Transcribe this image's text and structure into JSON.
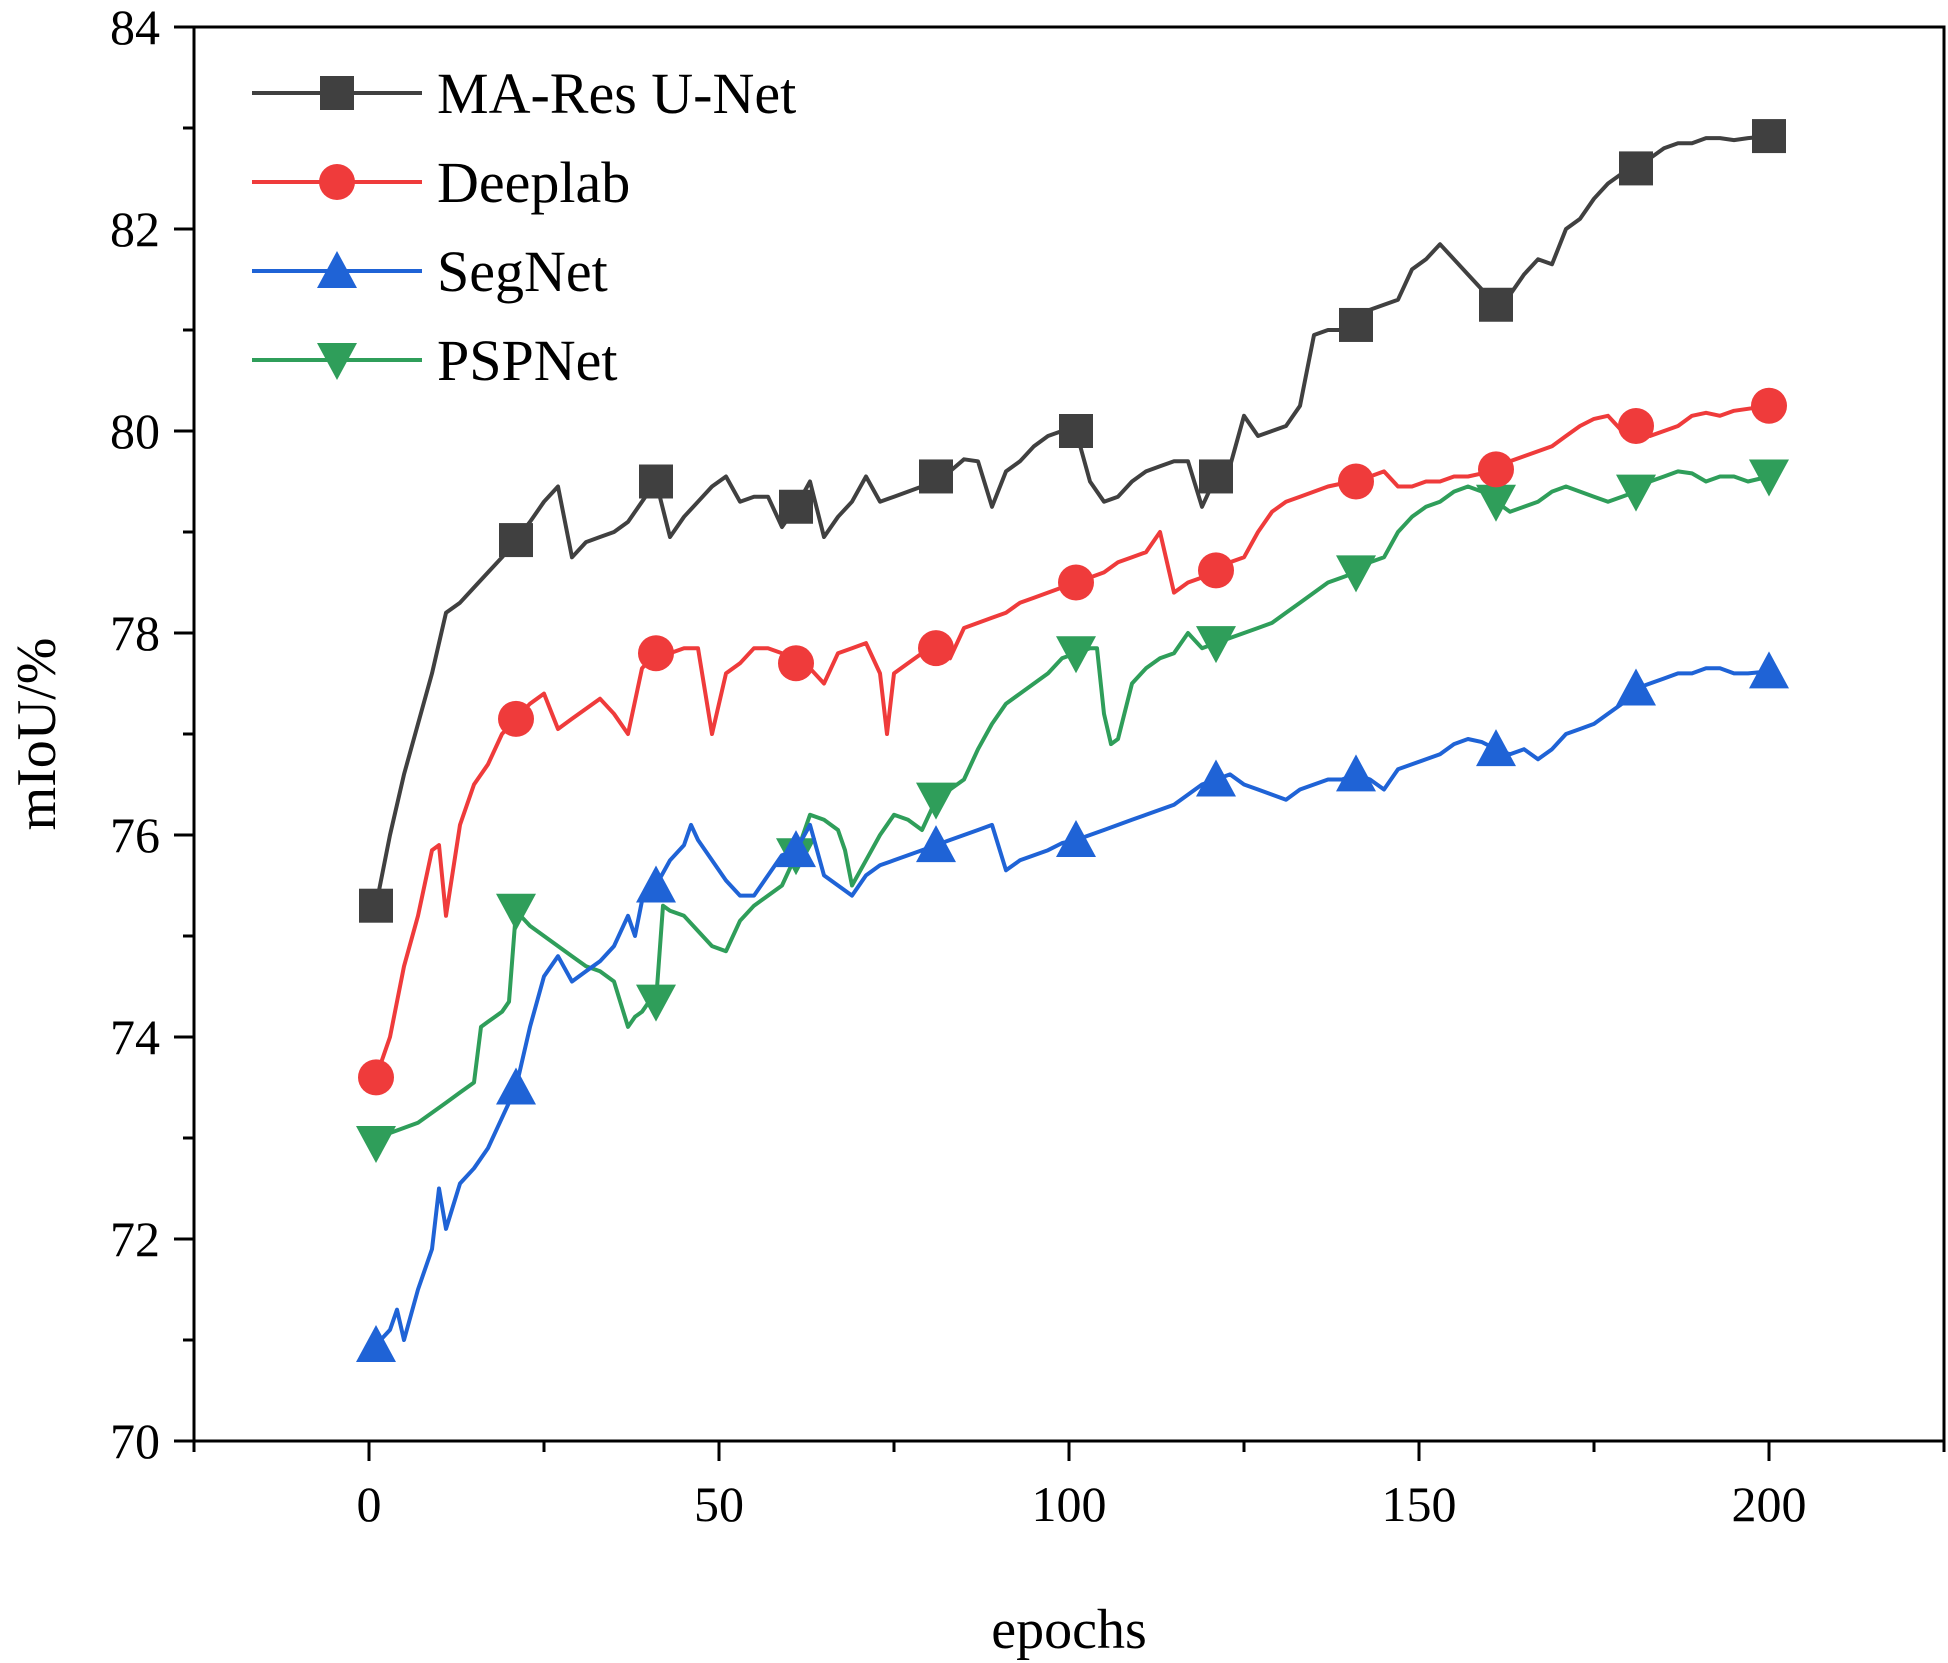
{
  "chart_data": {
    "type": "line",
    "title": "",
    "xlabel": "epochs",
    "ylabel": "mIoU/%",
    "xlim": [
      -25,
      225
    ],
    "ylim": [
      70,
      84
    ],
    "xticks": [
      0,
      50,
      100,
      150,
      200
    ],
    "yticks": [
      70,
      72,
      74,
      76,
      78,
      80,
      82,
      84
    ],
    "legend_position": "top-left",
    "series": [
      {
        "name": "MA-Res U-Net",
        "color": "#404040",
        "marker": "square",
        "markers_at": [
          1,
          21,
          41,
          61,
          81,
          101,
          121,
          141,
          161,
          181,
          200
        ],
        "x": [
          1,
          3,
          5,
          7,
          9,
          11,
          13,
          15,
          17,
          19,
          21,
          23,
          25,
          27,
          29,
          31,
          33,
          35,
          37,
          39,
          41,
          43,
          45,
          47,
          49,
          51,
          53,
          55,
          57,
          59,
          61,
          63,
          65,
          67,
          69,
          71,
          73,
          75,
          77,
          79,
          81,
          83,
          85,
          87,
          89,
          91,
          93,
          95,
          97,
          99,
          101,
          103,
          105,
          107,
          109,
          111,
          113,
          115,
          117,
          119,
          121,
          123,
          125,
          127,
          129,
          131,
          133,
          135,
          137,
          139,
          141,
          143,
          145,
          147,
          149,
          151,
          153,
          155,
          157,
          159,
          161,
          163,
          165,
          167,
          169,
          171,
          173,
          175,
          177,
          179,
          181,
          183,
          185,
          187,
          189,
          191,
          193,
          195,
          197,
          200
        ],
        "values": [
          75.3,
          76.0,
          76.6,
          77.1,
          77.6,
          78.2,
          78.3,
          78.45,
          78.6,
          78.75,
          78.92,
          79.1,
          79.3,
          79.45,
          78.75,
          78.9,
          78.95,
          79.0,
          79.1,
          79.3,
          79.5,
          78.95,
          79.15,
          79.3,
          79.45,
          79.55,
          79.3,
          79.35,
          79.35,
          79.05,
          79.25,
          79.5,
          78.95,
          79.15,
          79.3,
          79.55,
          79.3,
          79.35,
          79.4,
          79.45,
          79.55,
          79.6,
          79.72,
          79.7,
          79.25,
          79.6,
          79.7,
          79.85,
          79.95,
          80.0,
          80.0,
          79.5,
          79.3,
          79.35,
          79.5,
          79.6,
          79.65,
          79.7,
          79.7,
          79.25,
          79.55,
          79.65,
          80.15,
          79.95,
          80.0,
          80.05,
          80.25,
          80.95,
          81.0,
          81.0,
          81.05,
          81.2,
          81.25,
          81.3,
          81.6,
          81.7,
          81.85,
          81.7,
          81.55,
          81.4,
          81.25,
          81.35,
          81.55,
          81.7,
          81.65,
          82.0,
          82.1,
          82.3,
          82.45,
          82.55,
          82.6,
          82.7,
          82.8,
          82.85,
          82.85,
          82.9,
          82.9,
          82.88,
          82.9,
          82.92
        ]
      },
      {
        "name": "Deeplab",
        "color": "#ef3b3b",
        "marker": "circle",
        "markers_at": [
          1,
          21,
          41,
          61,
          81,
          101,
          121,
          141,
          161,
          181,
          200
        ],
        "x": [
          1,
          3,
          5,
          7,
          9,
          10,
          11,
          13,
          15,
          17,
          19,
          21,
          23,
          25,
          27,
          29,
          31,
          33,
          35,
          37,
          39,
          41,
          43,
          45,
          47,
          49,
          51,
          53,
          55,
          57,
          59,
          61,
          63,
          65,
          67,
          69,
          71,
          73,
          74,
          75,
          77,
          79,
          81,
          83,
          85,
          87,
          89,
          91,
          93,
          95,
          97,
          99,
          101,
          103,
          105,
          107,
          109,
          111,
          113,
          115,
          117,
          119,
          121,
          123,
          125,
          127,
          129,
          131,
          133,
          135,
          137,
          139,
          141,
          143,
          145,
          147,
          149,
          151,
          153,
          155,
          157,
          159,
          161,
          163,
          165,
          167,
          169,
          171,
          173,
          175,
          177,
          179,
          181,
          183,
          185,
          187,
          189,
          191,
          193,
          195,
          197,
          200
        ],
        "values": [
          73.6,
          74.0,
          74.7,
          75.2,
          75.85,
          75.9,
          75.2,
          76.1,
          76.5,
          76.7,
          77.0,
          77.15,
          77.3,
          77.4,
          77.05,
          77.15,
          77.25,
          77.35,
          77.2,
          77.0,
          77.65,
          77.8,
          77.8,
          77.85,
          77.85,
          77.0,
          77.6,
          77.7,
          77.85,
          77.85,
          77.8,
          77.7,
          77.65,
          77.5,
          77.8,
          77.85,
          77.9,
          77.6,
          77.0,
          77.6,
          77.7,
          77.8,
          77.85,
          77.75,
          78.05,
          78.1,
          78.15,
          78.2,
          78.3,
          78.35,
          78.4,
          78.45,
          78.5,
          78.55,
          78.6,
          78.7,
          78.75,
          78.8,
          79.0,
          78.4,
          78.5,
          78.55,
          78.62,
          78.7,
          78.75,
          79.0,
          79.2,
          79.3,
          79.35,
          79.4,
          79.45,
          79.48,
          79.5,
          79.55,
          79.6,
          79.45,
          79.45,
          79.5,
          79.5,
          79.55,
          79.55,
          79.58,
          79.62,
          79.7,
          79.75,
          79.8,
          79.85,
          79.95,
          80.05,
          80.12,
          80.15,
          80.0,
          80.05,
          79.95,
          80.0,
          80.05,
          80.15,
          80.18,
          80.15,
          80.2,
          80.22,
          80.25
        ]
      },
      {
        "name": "SegNet",
        "color": "#1f63d6",
        "marker": "triangle-up",
        "markers_at": [
          1,
          21,
          41,
          61,
          81,
          101,
          121,
          141,
          161,
          181,
          200
        ],
        "x": [
          1,
          3,
          4,
          5,
          7,
          9,
          10,
          11,
          13,
          15,
          17,
          19,
          21,
          23,
          25,
          27,
          29,
          31,
          33,
          35,
          37,
          38,
          39,
          41,
          43,
          45,
          46,
          47,
          49,
          51,
          53,
          55,
          57,
          59,
          61,
          63,
          65,
          67,
          69,
          71,
          73,
          75,
          77,
          79,
          81,
          83,
          85,
          87,
          89,
          91,
          93,
          95,
          97,
          99,
          101,
          103,
          105,
          107,
          109,
          111,
          113,
          115,
          117,
          119,
          121,
          123,
          125,
          127,
          129,
          131,
          133,
          135,
          137,
          139,
          141,
          143,
          145,
          147,
          149,
          151,
          153,
          155,
          157,
          159,
          161,
          163,
          165,
          167,
          169,
          171,
          173,
          175,
          177,
          179,
          181,
          183,
          185,
          187,
          189,
          191,
          193,
          195,
          197,
          200
        ],
        "values": [
          70.95,
          71.1,
          71.3,
          71.0,
          71.5,
          71.9,
          72.5,
          72.1,
          72.55,
          72.7,
          72.9,
          73.2,
          73.5,
          74.1,
          74.6,
          74.8,
          74.55,
          74.65,
          74.75,
          74.9,
          75.2,
          75.0,
          75.35,
          75.5,
          75.75,
          75.9,
          76.1,
          75.95,
          75.75,
          75.55,
          75.4,
          75.4,
          75.6,
          75.8,
          75.85,
          76.1,
          75.6,
          75.5,
          75.4,
          75.6,
          75.7,
          75.75,
          75.8,
          75.85,
          75.9,
          75.95,
          76.0,
          76.05,
          76.1,
          75.65,
          75.75,
          75.8,
          75.85,
          75.92,
          75.95,
          76.0,
          76.05,
          76.1,
          76.15,
          76.2,
          76.25,
          76.3,
          76.4,
          76.5,
          76.55,
          76.6,
          76.5,
          76.45,
          76.4,
          76.35,
          76.45,
          76.5,
          76.55,
          76.55,
          76.6,
          76.55,
          76.45,
          76.65,
          76.7,
          76.75,
          76.8,
          76.9,
          76.95,
          76.92,
          76.85,
          76.8,
          76.85,
          76.75,
          76.85,
          77.0,
          77.05,
          77.1,
          77.2,
          77.3,
          77.45,
          77.5,
          77.55,
          77.6,
          77.6,
          77.65,
          77.65,
          77.6,
          77.6,
          77.62
        ]
      },
      {
        "name": "PSPNet",
        "color": "#2f9e5a",
        "marker": "triangle-down",
        "markers_at": [
          1,
          21,
          41,
          61,
          81,
          101,
          121,
          141,
          161,
          181,
          200
        ],
        "x": [
          1,
          3,
          5,
          7,
          9,
          11,
          13,
          15,
          16,
          17,
          19,
          20,
          21,
          23,
          25,
          27,
          29,
          31,
          33,
          35,
          37,
          38,
          39,
          40,
          41,
          42,
          43,
          45,
          47,
          49,
          51,
          53,
          55,
          57,
          59,
          61,
          63,
          65,
          67,
          68,
          69,
          71,
          73,
          75,
          77,
          79,
          81,
          83,
          85,
          87,
          89,
          91,
          93,
          95,
          97,
          99,
          101,
          103,
          104,
          105,
          106,
          107,
          109,
          111,
          113,
          115,
          117,
          119,
          121,
          123,
          125,
          127,
          129,
          131,
          133,
          135,
          137,
          139,
          141,
          143,
          145,
          147,
          149,
          151,
          153,
          155,
          157,
          159,
          161,
          163,
          165,
          167,
          169,
          171,
          173,
          175,
          177,
          179,
          181,
          183,
          185,
          187,
          189,
          191,
          193,
          195,
          197,
          200
        ],
        "values": [
          72.95,
          73.05,
          73.1,
          73.15,
          73.25,
          73.35,
          73.45,
          73.55,
          74.1,
          74.15,
          74.25,
          74.35,
          75.25,
          75.1,
          75.0,
          74.9,
          74.8,
          74.7,
          74.65,
          74.55,
          74.1,
          74.2,
          74.25,
          74.35,
          74.35,
          75.3,
          75.25,
          75.2,
          75.05,
          74.9,
          74.85,
          75.15,
          75.3,
          75.4,
          75.5,
          75.8,
          76.2,
          76.15,
          76.05,
          75.85,
          75.5,
          75.75,
          76.0,
          76.2,
          76.15,
          76.05,
          76.35,
          76.45,
          76.55,
          76.85,
          77.1,
          77.3,
          77.4,
          77.5,
          77.6,
          77.75,
          77.8,
          77.85,
          77.85,
          77.2,
          76.9,
          76.95,
          77.5,
          77.65,
          77.75,
          77.8,
          78.0,
          77.85,
          77.9,
          77.95,
          78.0,
          78.05,
          78.1,
          78.2,
          78.3,
          78.4,
          78.5,
          78.55,
          78.6,
          78.7,
          78.75,
          79.0,
          79.15,
          79.25,
          79.3,
          79.4,
          79.45,
          79.4,
          79.3,
          79.2,
          79.25,
          79.3,
          79.4,
          79.45,
          79.4,
          79.35,
          79.3,
          79.35,
          79.4,
          79.5,
          79.55,
          79.6,
          79.58,
          79.5,
          79.55,
          79.55,
          79.5,
          79.55
        ]
      }
    ]
  }
}
